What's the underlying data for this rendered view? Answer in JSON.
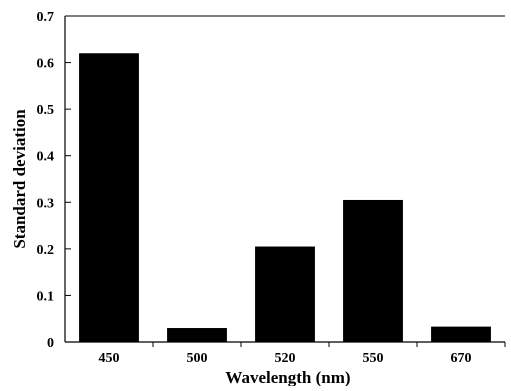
{
  "chart_data": {
    "type": "bar",
    "title": "",
    "xlabel": "Wavelength (nm)",
    "ylabel": "Standard deviation",
    "categories": [
      "450",
      "500",
      "520",
      "550",
      "670"
    ],
    "values": [
      0.62,
      0.03,
      0.205,
      0.305,
      0.033
    ],
    "ylim": [
      0,
      0.7
    ],
    "yticks": [
      "0",
      "0.1",
      "0.2",
      "0.3",
      "0.4",
      "0.5",
      "0.6",
      "0.7"
    ],
    "grid": false,
    "legend": "none",
    "bar_color": "#000000"
  }
}
